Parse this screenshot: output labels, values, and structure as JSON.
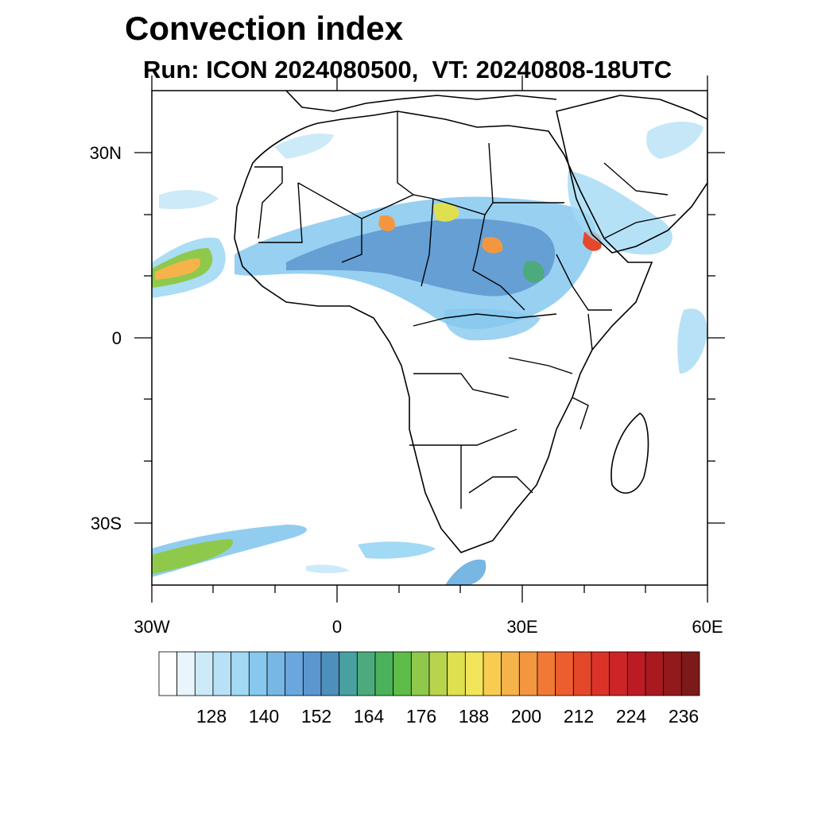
{
  "header": {
    "title": "Convection index",
    "subtitle": "Run: ICON 2024080500,  VT: 20240808-18UTC"
  },
  "map": {
    "lon_range": [
      -30,
      60
    ],
    "lat_range": [
      -40,
      40
    ],
    "lat_labels": [
      "30N",
      "0",
      "30S"
    ],
    "lon_labels": [
      "30W",
      "0",
      "30E",
      "60E"
    ],
    "boundary_color": "#000000"
  },
  "colorbar": {
    "labels": [
      "128",
      "140",
      "152",
      "164",
      "176",
      "188",
      "200",
      "212",
      "224",
      "236"
    ],
    "colors": [
      "#ffffff",
      "#e8f5fc",
      "#cdeaf8",
      "#b7e1f6",
      "#a2d9f4",
      "#86c8ee",
      "#78b6e4",
      "#6aa7de",
      "#5c96cf",
      "#4d8fbd",
      "#48a1a0",
      "#4caa7c",
      "#4ab25a",
      "#5ebc48",
      "#8fc94c",
      "#b8d44c",
      "#dfe050",
      "#f3e55a",
      "#f8cc50",
      "#f5b34a",
      "#f49640",
      "#f07a35",
      "#ec5e2f",
      "#e5472b",
      "#dc3329",
      "#cd2427",
      "#bc1b24",
      "#a81a1f",
      "#931a1c",
      "#7c1a1a"
    ]
  }
}
